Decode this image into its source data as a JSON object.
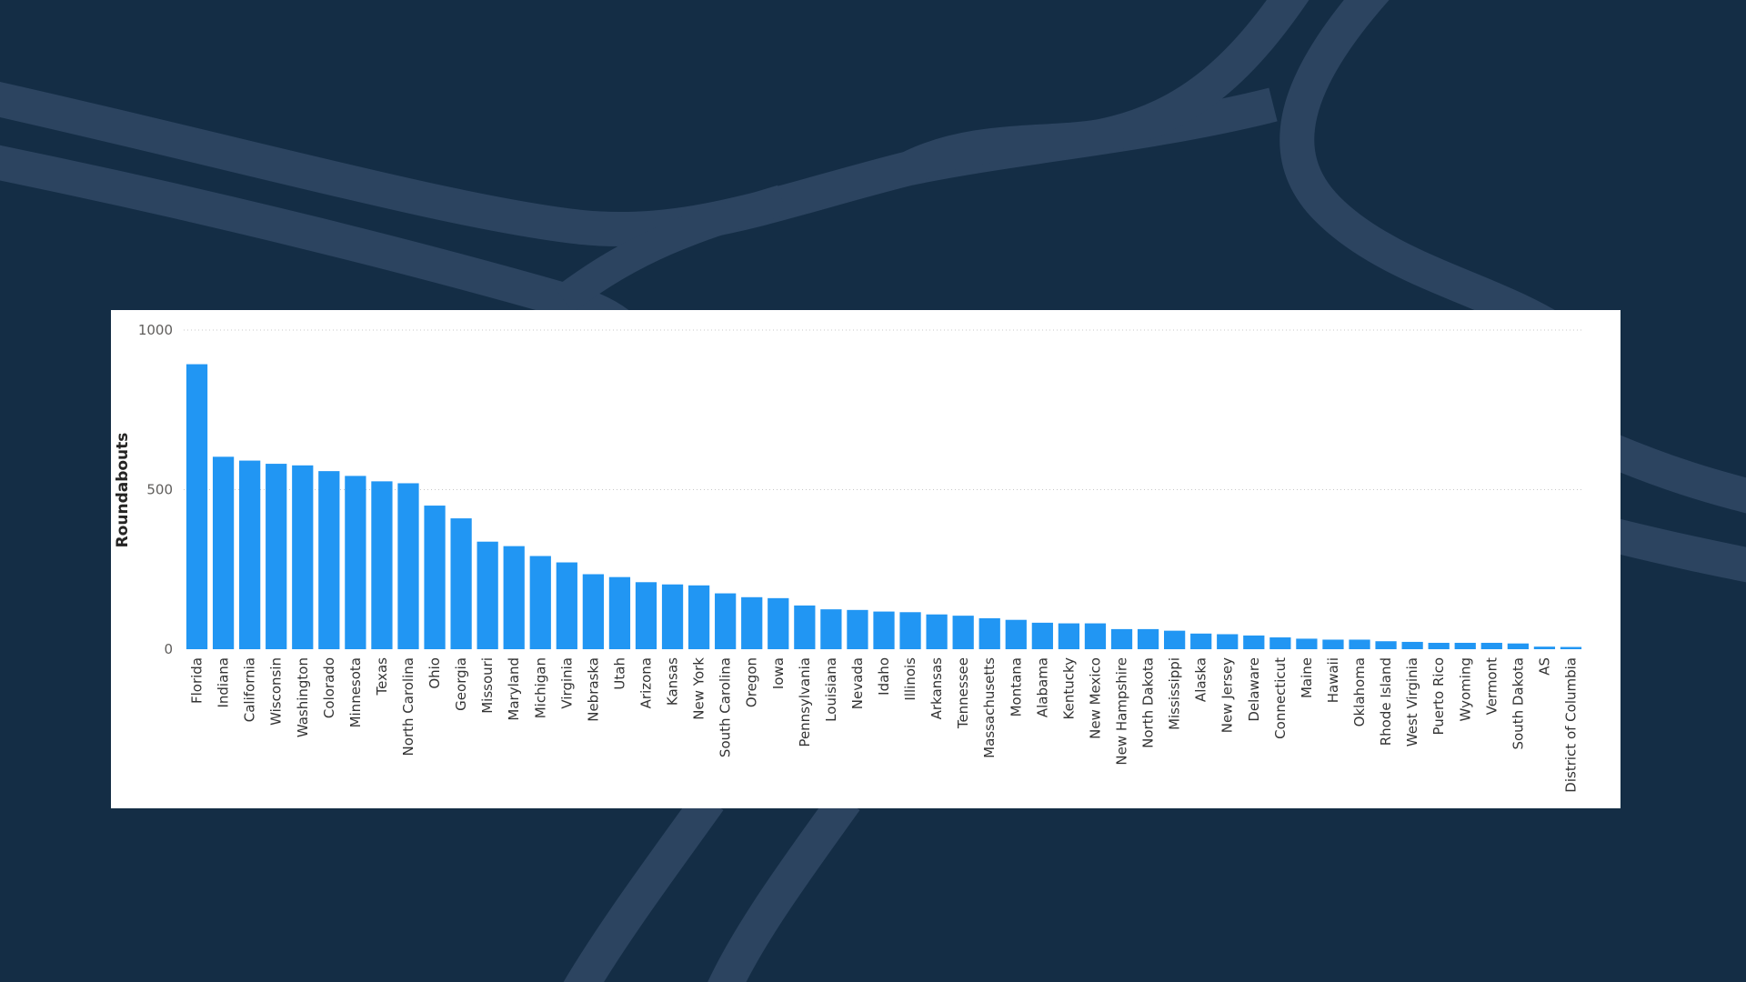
{
  "colors": {
    "background": "#142d45",
    "background_shape": "#2c4460",
    "panel": "#ffffff",
    "bar": "#2196f3",
    "gridline": "#c8c8c8"
  },
  "chart_data": {
    "type": "bar",
    "title": "",
    "xlabel": "",
    "ylabel": "Roundabouts",
    "ylim": [
      0,
      1000
    ],
    "yticks": [
      0,
      500,
      1000
    ],
    "grid": true,
    "legend": "none",
    "categories": [
      "Florida",
      "Indiana",
      "California",
      "Wisconsin",
      "Washington",
      "Colorado",
      "Minnesota",
      "Texas",
      "North Carolina",
      "Ohio",
      "Georgia",
      "Missouri",
      "Maryland",
      "Michigan",
      "Virginia",
      "Nebraska",
      "Utah",
      "Arizona",
      "Kansas",
      "New York",
      "South Carolina",
      "Oregon",
      "Iowa",
      "Pennsylvania",
      "Louisiana",
      "Nevada",
      "Idaho",
      "Illinois",
      "Arkansas",
      "Tennessee",
      "Massachusetts",
      "Montana",
      "Alabama",
      "Kentucky",
      "New Mexico",
      "New Hampshire",
      "North Dakota",
      "Mississippi",
      "Alaska",
      "New Jersey",
      "Delaware",
      "Connecticut",
      "Maine",
      "Hawaii",
      "Oklahoma",
      "Rhode Island",
      "West Virginia",
      "Puerto Rico",
      "Wyoming",
      "Vermont",
      "South Dakota",
      "AS",
      "District of Columbia"
    ],
    "values": [
      893,
      603,
      591,
      581,
      576,
      558,
      543,
      526,
      520,
      450,
      410,
      337,
      323,
      292,
      272,
      235,
      226,
      210,
      203,
      200,
      175,
      163,
      160,
      137,
      125,
      123,
      118,
      116,
      109,
      105,
      97,
      92,
      83,
      81,
      81,
      63,
      63,
      58,
      49,
      47,
      43,
      37,
      33,
      30,
      30,
      25,
      23,
      20,
      20,
      20,
      18,
      8,
      7
    ]
  }
}
